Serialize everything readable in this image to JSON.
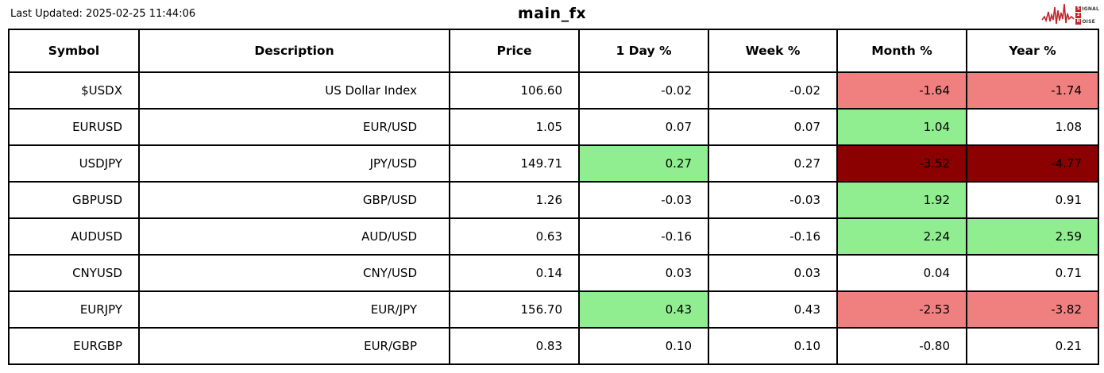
{
  "page": {
    "last_updated": "Last Updated: 2025-02-25 11:44:06",
    "title": "main_fx"
  },
  "logo": {
    "word_top_initial": "S",
    "word_top_rest": "IGNAL",
    "word_mid": "2",
    "word_bottom_initial": "N",
    "word_bottom_rest": "OISE"
  },
  "colors": {
    "positive_bg": "#90ee90",
    "negative_bg": "#f08080",
    "strong_negative_bg": "#8b0000",
    "logo_red": "#c0262c",
    "border": "#000000"
  },
  "chart_data": {
    "type": "table",
    "title": "main_fx",
    "columns": [
      "Symbol",
      "Description",
      "Price",
      "1 Day %",
      "Week %",
      "Month %",
      "Year %"
    ],
    "rows": [
      {
        "cells": [
          "$USDX",
          "US Dollar Index",
          "106.60",
          "-0.02",
          "-0.02",
          "-1.64",
          "-1.74"
        ],
        "highlights": [
          "",
          "",
          "",
          "",
          "",
          "negative",
          "negative"
        ]
      },
      {
        "cells": [
          "EURUSD",
          "EUR/USD",
          "1.05",
          "0.07",
          "0.07",
          "1.04",
          "1.08"
        ],
        "highlights": [
          "",
          "",
          "",
          "",
          "",
          "positive",
          ""
        ]
      },
      {
        "cells": [
          "USDJPY",
          "JPY/USD",
          "149.71",
          "0.27",
          "0.27",
          "-3.52",
          "-4.77"
        ],
        "highlights": [
          "",
          "",
          "",
          "positive",
          "",
          "strong_negative",
          "strong_negative"
        ]
      },
      {
        "cells": [
          "GBPUSD",
          "GBP/USD",
          "1.26",
          "-0.03",
          "-0.03",
          "1.92",
          "0.91"
        ],
        "highlights": [
          "",
          "",
          "",
          "",
          "",
          "positive",
          ""
        ]
      },
      {
        "cells": [
          "AUDUSD",
          "AUD/USD",
          "0.63",
          "-0.16",
          "-0.16",
          "2.24",
          "2.59"
        ],
        "highlights": [
          "",
          "",
          "",
          "",
          "",
          "positive",
          "positive"
        ]
      },
      {
        "cells": [
          "CNYUSD",
          "CNY/USD",
          "0.14",
          "0.03",
          "0.03",
          "0.04",
          "0.71"
        ],
        "highlights": [
          "",
          "",
          "",
          "",
          "",
          "",
          ""
        ]
      },
      {
        "cells": [
          "EURJPY",
          "EUR/JPY",
          "156.70",
          "0.43",
          "0.43",
          "-2.53",
          "-3.82"
        ],
        "highlights": [
          "",
          "",
          "",
          "positive",
          "",
          "negative",
          "negative"
        ]
      },
      {
        "cells": [
          "EURGBP",
          "EUR/GBP",
          "0.83",
          "0.10",
          "0.10",
          "-0.80",
          "0.21"
        ],
        "highlights": [
          "",
          "",
          "",
          "",
          "",
          "",
          ""
        ]
      }
    ]
  }
}
